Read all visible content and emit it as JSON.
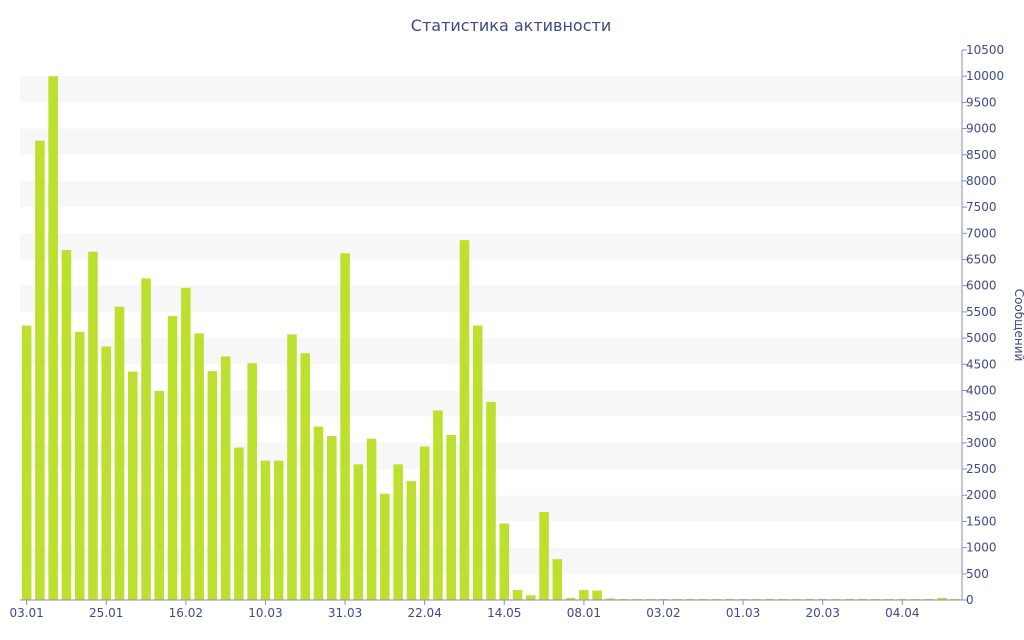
{
  "chart_data": {
    "type": "bar",
    "title": "Статистика активности",
    "ylabel": "Сообщений",
    "xlabel": "",
    "ylim": [
      0,
      10500
    ],
    "y_ticks": [
      0,
      500,
      1000,
      1500,
      2000,
      2500,
      3000,
      3500,
      4000,
      4500,
      5000,
      5500,
      6000,
      6500,
      7000,
      7500,
      8000,
      8500,
      9000,
      9500,
      10000,
      10500
    ],
    "x_tick_labels": [
      {
        "index": 0,
        "label": "03.01"
      },
      {
        "index": 6,
        "label": "25.01"
      },
      {
        "index": 12,
        "label": "16.02"
      },
      {
        "index": 18,
        "label": "10.03"
      },
      {
        "index": 24,
        "label": "31.03"
      },
      {
        "index": 30,
        "label": "22.04"
      },
      {
        "index": 36,
        "label": "14.05"
      },
      {
        "index": 42,
        "label": "08.01"
      },
      {
        "index": 48,
        "label": "03.02"
      },
      {
        "index": 54,
        "label": "01.03"
      },
      {
        "index": 60,
        "label": "20.03"
      },
      {
        "index": 66,
        "label": "04.04"
      }
    ],
    "values": [
      5240,
      8770,
      10000,
      6680,
      5120,
      6650,
      4840,
      5600,
      4360,
      6140,
      3990,
      5420,
      5960,
      5090,
      4370,
      4650,
      2910,
      4520,
      2660,
      2660,
      5070,
      4710,
      3310,
      3130,
      6620,
      2590,
      3080,
      2030,
      2590,
      2270,
      2930,
      3620,
      3150,
      6870,
      5240,
      3780,
      1460,
      190,
      90,
      1680,
      780,
      40,
      190,
      180,
      30,
      20,
      20,
      20,
      20,
      20,
      20,
      20,
      20,
      20,
      20,
      20,
      20,
      20,
      20,
      20,
      20,
      20,
      20,
      20,
      20,
      20,
      20,
      20,
      20,
      40,
      20
    ],
    "grid": true,
    "colors": {
      "bar": "#bde02e",
      "band": "#f7f7f7",
      "text": "#3e4a8a",
      "axis": "#8a8fb4"
    }
  }
}
